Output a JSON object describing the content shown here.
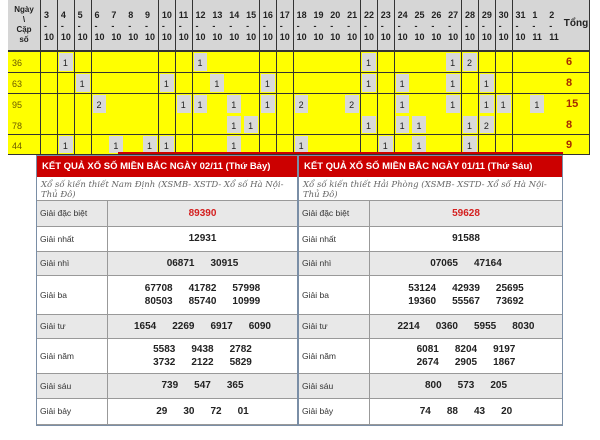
{
  "stats": {
    "corner_label": [
      "Ngày",
      "\\",
      "Cặp",
      "số"
    ],
    "columns": [
      {
        "day": "3",
        "month": "10"
      },
      {
        "day": "4",
        "month": "10"
      },
      {
        "day": "5",
        "month": "10"
      },
      {
        "day": "6",
        "month": "10"
      },
      {
        "day": "7",
        "month": "10"
      },
      {
        "day": "8",
        "month": "10"
      },
      {
        "day": "9",
        "month": "10"
      },
      {
        "day": "10",
        "month": "10"
      },
      {
        "day": "11",
        "month": "10"
      },
      {
        "day": "12",
        "month": "10"
      },
      {
        "day": "13",
        "month": "10"
      },
      {
        "day": "14",
        "month": "10"
      },
      {
        "day": "15",
        "month": "10"
      },
      {
        "day": "16",
        "month": "10"
      },
      {
        "day": "17",
        "month": "10"
      },
      {
        "day": "18",
        "month": "10"
      },
      {
        "day": "19",
        "month": "10"
      },
      {
        "day": "20",
        "month": "10"
      },
      {
        "day": "21",
        "month": "10"
      },
      {
        "day": "22",
        "month": "10"
      },
      {
        "day": "23",
        "month": "10"
      },
      {
        "day": "24",
        "month": "10"
      },
      {
        "day": "25",
        "month": "10"
      },
      {
        "day": "26",
        "month": "10"
      },
      {
        "day": "27",
        "month": "10"
      },
      {
        "day": "28",
        "month": "10"
      },
      {
        "day": "29",
        "month": "10"
      },
      {
        "day": "30",
        "month": "10"
      },
      {
        "day": "31",
        "month": "10"
      },
      {
        "day": "1",
        "month": "11"
      },
      {
        "day": "2",
        "month": "11"
      }
    ],
    "total_label": "Tổng",
    "rows": [
      {
        "pair": "36",
        "counts": {
          "4": "1",
          "12": "1",
          "22": "1",
          "27": "1",
          "28": "2"
        },
        "total": "6"
      },
      {
        "pair": "63",
        "counts": {
          "5": "1",
          "10": "1",
          "13": "1",
          "16": "1",
          "22": "1",
          "24": "1",
          "27": "1",
          "29": "1"
        },
        "total": "8"
      },
      {
        "pair": "95",
        "counts": {
          "6": "2",
          "11": "1",
          "12": "1",
          "14": "1",
          "16": "1",
          "18": "2",
          "21": "2",
          "24": "1",
          "27": "1",
          "29": "1",
          "30": "1",
          "1/11": "1"
        },
        "total": "15"
      },
      {
        "pair": "78",
        "counts": {
          "14": "1",
          "15": "1",
          "22": "1",
          "24": "1",
          "25": "1",
          "28": "1",
          "29": "2"
        },
        "total": "8"
      },
      {
        "pair": "44",
        "counts": {
          "4": "1",
          "7": "1",
          "9": "1",
          "10": "1",
          "14": "1",
          "18": "1",
          "23": "1",
          "25": "1",
          "28": "1"
        },
        "total": "9"
      }
    ],
    "colors": {
      "row_bg": "#ffff00",
      "hit_bg": "#d9d9d9",
      "header_bg": "#d6d6d6"
    }
  },
  "results": [
    {
      "title": "KẾT QUẢ XỔ SỐ MIỀN BẮC NGÀY 02/11 (Thứ Bảy)",
      "subtitle": "Xổ số kiến thiết Nam Định (XSMB- XSTD- Xổ số Hà Nội- Thủ Đô)",
      "prizes": [
        {
          "label": "Giải đặc biệt",
          "lines": [
            [
              "89390"
            ]
          ],
          "special": true
        },
        {
          "label": "Giải nhất",
          "lines": [
            [
              "12931"
            ]
          ]
        },
        {
          "label": "Giải nhì",
          "lines": [
            [
              "06871",
              "30915"
            ]
          ]
        },
        {
          "label": "Giải ba",
          "lines": [
            [
              "67708",
              "41782",
              "57998"
            ],
            [
              "80503",
              "85740",
              "10999"
            ]
          ]
        },
        {
          "label": "Giải tư",
          "lines": [
            [
              "1654",
              "2269",
              "6917",
              "6090"
            ]
          ]
        },
        {
          "label": "Giải năm",
          "lines": [
            [
              "5583",
              "9438",
              "2782"
            ],
            [
              "3732",
              "2122",
              "5829"
            ]
          ]
        },
        {
          "label": "Giải sáu",
          "lines": [
            [
              "739",
              "547",
              "365"
            ]
          ]
        },
        {
          "label": "Giải bảy",
          "lines": [
            [
              "29",
              "30",
              "72",
              "01"
            ]
          ]
        }
      ]
    },
    {
      "title": "KẾT QUẢ XỔ SỐ MIỀN BẮC NGÀY 01/11 (Thứ Sáu)",
      "subtitle": "Xổ số kiến thiết Hải Phòng (XSMB- XSTD- Xổ số Hà Nội- Thủ Đô)",
      "prizes": [
        {
          "label": "Giải đặc biệt",
          "lines": [
            [
              "59628"
            ]
          ],
          "special": true
        },
        {
          "label": "Giải nhất",
          "lines": [
            [
              "91588"
            ]
          ]
        },
        {
          "label": "Giải nhì",
          "lines": [
            [
              "07065",
              "47164"
            ]
          ]
        },
        {
          "label": "Giải ba",
          "lines": [
            [
              "53124",
              "42939",
              "25695"
            ],
            [
              "19360",
              "55567",
              "73692"
            ]
          ]
        },
        {
          "label": "Giải tư",
          "lines": [
            [
              "2214",
              "0360",
              "5955",
              "8030"
            ]
          ]
        },
        {
          "label": "Giải năm",
          "lines": [
            [
              "6081",
              "8204",
              "9197"
            ],
            [
              "2674",
              "2905",
              "1867"
            ]
          ]
        },
        {
          "label": "Giải sáu",
          "lines": [
            [
              "800",
              "573",
              "205"
            ]
          ]
        },
        {
          "label": "Giải bảy",
          "lines": [
            [
              "74",
              "88",
              "43",
              "20"
            ]
          ]
        }
      ],
      "header_color": "#cc0000"
    }
  ]
}
